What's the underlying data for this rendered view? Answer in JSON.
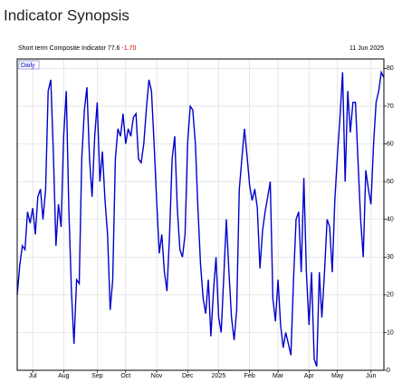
{
  "page_title": "Indicator Synopsis",
  "chart_data": {
    "type": "line",
    "title": "Short term Composite Indicator",
    "last_value": 77.6,
    "change": "-1.70",
    "date": "11 Jun 2025",
    "legend": "Daily",
    "color": "#0000cc",
    "grid": true,
    "values": [
      20,
      28,
      33,
      32,
      42,
      39,
      43,
      36,
      46,
      48,
      40,
      48,
      74,
      77,
      58,
      33,
      44,
      38,
      62,
      74,
      43,
      21,
      7,
      24,
      23,
      56,
      69,
      75,
      56,
      46,
      62,
      71,
      50,
      58,
      45,
      36,
      16,
      24,
      56,
      64,
      62,
      68,
      60,
      64,
      62,
      67,
      68,
      56,
      55,
      60,
      69,
      77,
      74,
      60,
      45,
      31,
      36,
      26,
      21,
      36,
      56,
      62,
      43,
      32,
      30,
      36,
      60,
      70,
      69,
      60,
      43,
      28,
      19,
      15,
      24,
      9,
      21,
      30,
      14,
      10,
      25,
      40,
      26,
      14,
      8,
      16,
      48,
      56,
      64,
      57,
      49,
      45,
      48,
      43,
      27,
      37,
      42,
      46,
      50,
      19,
      13,
      24,
      12,
      6,
      10,
      7,
      4,
      24,
      40,
      42,
      26,
      51,
      26,
      12,
      26,
      3,
      1,
      26,
      14,
      26,
      40,
      38,
      26,
      45,
      57,
      67,
      79,
      50,
      74,
      63,
      71,
      71,
      55,
      40,
      30,
      53,
      48,
      44,
      60,
      71,
      74,
      79,
      77.6
    ],
    "xlim": [
      0,
      142
    ],
    "xticks": [
      {
        "value": 6,
        "label": "Jul"
      },
      {
        "value": 18,
        "label": "Aug"
      },
      {
        "value": 31,
        "label": "Sep"
      },
      {
        "value": 42,
        "label": "Oct"
      },
      {
        "value": 54,
        "label": "Nov"
      },
      {
        "value": 66,
        "label": "Dec"
      },
      {
        "value": 78,
        "label": "2025"
      },
      {
        "value": 90,
        "label": "Feb"
      },
      {
        "value": 101,
        "label": "Mar"
      },
      {
        "value": 113,
        "label": "Apr"
      },
      {
        "value": 124,
        "label": "May"
      },
      {
        "value": 137,
        "label": "Jun"
      }
    ],
    "ylim": [
      0,
      82.5
    ],
    "yticks": [
      0,
      10,
      20,
      30,
      40,
      50,
      60,
      70,
      80
    ]
  }
}
